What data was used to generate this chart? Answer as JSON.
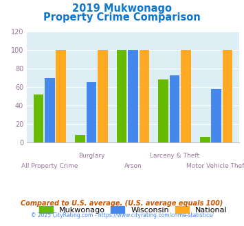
{
  "title_line1": "2019 Mukwonago",
  "title_line2": "Property Crime Comparison",
  "x_labels_row1": [
    "",
    "Burglary",
    "",
    "Larceny & Theft",
    ""
  ],
  "x_labels_row2": [
    "All Property Crime",
    "",
    "Arson",
    "",
    "Motor Vehicle Theft"
  ],
  "mukwonago": [
    52,
    8,
    100,
    68,
    6
  ],
  "wisconsin": [
    70,
    65,
    100,
    73,
    58
  ],
  "national": [
    100,
    100,
    100,
    100,
    100
  ],
  "mukwonago_color": "#66bb00",
  "wisconsin_color": "#4488ee",
  "national_color": "#ffaa22",
  "title_color": "#1177cc",
  "xlabel_color": "#997799",
  "ylabel_color": "#997799",
  "plot_bg": "#ddeef5",
  "ylim": [
    0,
    120
  ],
  "yticks": [
    0,
    20,
    40,
    60,
    80,
    100,
    120
  ],
  "legend_labels": [
    "Mukwonago",
    "Wisconsin",
    "National"
  ],
  "footnote1": "Compared to U.S. average. (U.S. average equals 100)",
  "footnote2": "© 2025 CityRating.com - https://www.cityrating.com/crime-statistics/",
  "footnote1_color": "#cc5500",
  "footnote2_color": "#4488ee"
}
